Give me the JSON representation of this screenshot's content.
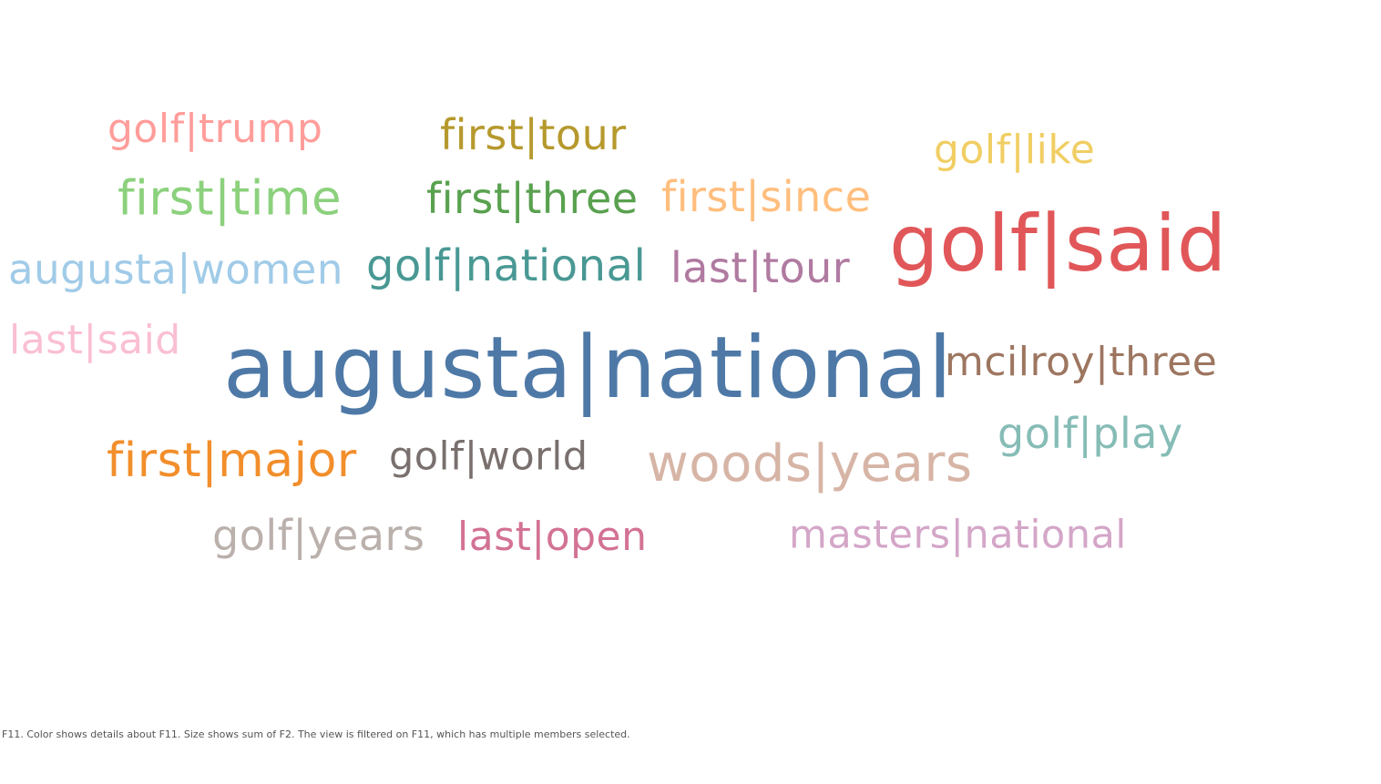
{
  "chart_data": {
    "type": "wordcloud",
    "title": "",
    "size_measure": "sum of F2",
    "color_dimension": "F11",
    "words": [
      {
        "text": "augusta|national",
        "value": 100,
        "color": "#4e79a7"
      },
      {
        "text": "golf|said",
        "value": 86,
        "color": "#e15759"
      },
      {
        "text": "woods|years",
        "value": 58,
        "color": "#d7b5a6"
      },
      {
        "text": "first|major",
        "value": 56,
        "color": "#f28e2b"
      },
      {
        "text": "first|time",
        "value": 55,
        "color": "#8cd17d"
      },
      {
        "text": "golf|national",
        "value": 52,
        "color": "#499894"
      },
      {
        "text": "augusta|women",
        "value": 48,
        "color": "#a0cbe8"
      },
      {
        "text": "first|since",
        "value": 49,
        "color": "#ffbe7d"
      },
      {
        "text": "first|three",
        "value": 49,
        "color": "#59a14f"
      },
      {
        "text": "first|tour",
        "value": 49,
        "color": "#b6992d"
      },
      {
        "text": "last|tour",
        "value": 48,
        "color": "#b07aa1"
      },
      {
        "text": "golf|years",
        "value": 48,
        "color": "#bab0ac"
      },
      {
        "text": "golf|play",
        "value": 48,
        "color": "#86bcb6"
      },
      {
        "text": "last|said",
        "value": 47,
        "color": "#fabfd2"
      },
      {
        "text": "last|open",
        "value": 47,
        "color": "#d37295"
      },
      {
        "text": "golf|trump",
        "value": 46,
        "color": "#ff9d9a"
      },
      {
        "text": "golf|like",
        "value": 46,
        "color": "#f1ce63"
      },
      {
        "text": "mcilroy|three",
        "value": 46,
        "color": "#9d7660"
      },
      {
        "text": "masters|national",
        "value": 45,
        "color": "#d4a6c8"
      },
      {
        "text": "golf|world",
        "value": 44,
        "color": "#79706e"
      }
    ]
  },
  "caption": "F11.  Color shows details about F11.  Size shows sum of F2. The view is filtered on F11, which has multiple members selected."
}
